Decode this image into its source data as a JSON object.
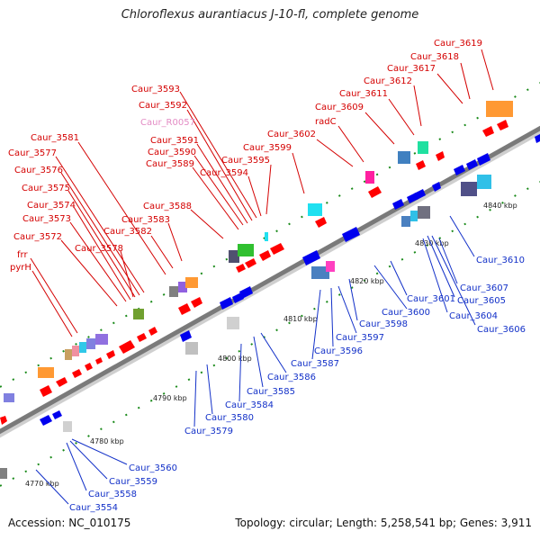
{
  "title": "Chloroflexus aurantiacus J-10-fl, complete genome",
  "accession": "Accession: NC_010175",
  "topology": "Topology: circular; Length: 5,258,541 bp; Genes: 3,911",
  "colors": {
    "forward_label": "#d40000",
    "reverse_label": "#1230c8",
    "rna_label": "#e38bc4",
    "forward_gene": "#ff0000",
    "reverse_gene": "#0000ee"
  },
  "scale_labels": [
    "4770 kbp",
    "4780 kbp",
    "4790 kbp",
    "4800 kbp",
    "4810 kbp",
    "4820 kbp",
    "4830 kbp",
    "4840 kbp"
  ],
  "forward_labels": [
    "Caur_3619",
    "Caur_3618",
    "Caur_3617",
    "Caur_3612",
    "Caur_3611",
    "Caur_3609",
    "radC",
    "Caur_3602",
    "Caur_3599",
    "Caur_3595",
    "Caur_3594",
    "Caur_3593",
    "Caur_3592",
    "Caur_3591",
    "Caur_3590",
    "Caur_3589",
    "Caur_3588",
    "Caur_3583",
    "Caur_3582",
    "Caur_3581",
    "Caur_3577",
    "Caur_3576",
    "Caur_3575",
    "Caur_3574",
    "Caur_3573",
    "Caur_3572",
    "Caur_3578",
    "frr",
    "pyrH"
  ],
  "rna_labels": [
    "Caur_R0057"
  ],
  "reverse_labels": [
    "Caur_3610",
    "Caur_3607",
    "Caur_3605",
    "Caur_3604",
    "Caur_3606",
    "Caur_3601",
    "Caur_3600",
    "Caur_3598",
    "Caur_3597",
    "Caur_3596",
    "Caur_3587",
    "Caur_3586",
    "Caur_3585",
    "Caur_3584",
    "Caur_3580",
    "Caur_3579",
    "Caur_3560",
    "Caur_3559",
    "Caur_3558",
    "Caur_3554"
  ]
}
